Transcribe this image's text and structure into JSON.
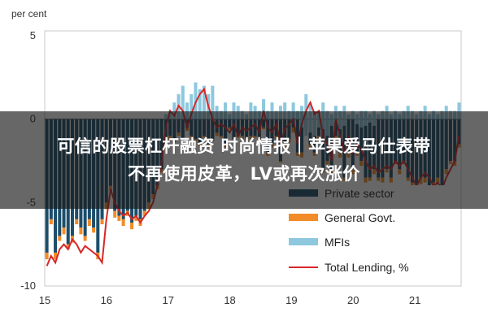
{
  "chart_data": {
    "type": "bar",
    "ylabel": "per cent",
    "ylim": [
      -10,
      5
    ],
    "yticks": [
      5,
      0,
      -5,
      -10
    ],
    "xticks": [
      "15",
      "16",
      "17",
      "18",
      "19",
      "20",
      "21"
    ],
    "x_start_year": 2015,
    "x_end_year": 2021.75,
    "series_names": {
      "private": "Private sector",
      "gov": "General Govt.",
      "mfi": "MFIs",
      "total": "Total Lending, %"
    },
    "colors": {
      "private": "#1d4e6b",
      "gov": "#f28c28",
      "mfi": "#8dc8de",
      "total": "#d62728"
    },
    "bars": {
      "private": [
        -8.0,
        -6.0,
        -8.0,
        -7.0,
        -6.5,
        -7.5,
        -7.0,
        -6.0,
        -6.5,
        -7.0,
        -6.0,
        -6.5,
        -8.0,
        -6.0,
        -5.0,
        -4.0,
        -5.5,
        -5.8,
        -6.0,
        -5.5,
        -6.2,
        -5.8,
        -6.0,
        -5.5,
        -5.0,
        -4.5,
        -4.0,
        -3.0,
        -1.5,
        -1.0,
        -1.2,
        -0.8,
        -1.5,
        -0.5,
        -1.0,
        -1.2,
        -1.5,
        -1.0,
        -1.5,
        -1.2,
        -0.8,
        -1.0,
        -1.5,
        -0.5,
        -1.2,
        -1.0,
        -1.0,
        -1.2,
        -1.0,
        -1.0,
        -1.2,
        -0.5,
        -2.0,
        -1.5,
        -1.0,
        -2.5,
        -1.5,
        -1.2,
        -0.5,
        -2.0,
        -2.0,
        -0.5,
        -1.5,
        -2.0,
        -1.0,
        -3.0,
        -2.5,
        -3.0,
        -1.0,
        -2.0,
        -3.5,
        -2.0,
        -3.0,
        -2.0,
        -2.5,
        -3.5,
        -3.5,
        -3.0,
        -3.5,
        -3.5,
        -3.0,
        -3.5,
        -2.5,
        -3.0,
        -2.5,
        -3.5,
        -3.8,
        -4.5,
        -3.5,
        -3.5,
        -4.0,
        -3.8,
        -3.5,
        -4.0,
        -3.0,
        -2.5,
        -2.5,
        -1.5
      ],
      "gov": [
        -0.4,
        -0.3,
        -0.4,
        -0.3,
        -0.4,
        -0.3,
        -0.4,
        -0.3,
        -0.4,
        -0.3,
        -0.4,
        -0.3,
        -0.4,
        -0.3,
        -0.4,
        -0.3,
        -0.4,
        -0.3,
        -0.4,
        -0.3,
        -0.4,
        -0.3,
        -0.4,
        -0.3,
        -0.4,
        -0.3,
        -0.2,
        -0.2,
        -0.3,
        -0.2,
        -0.2,
        -0.2,
        -0.1,
        -0.2,
        -0.1,
        -0.1,
        -0.1,
        -0.1,
        -0.2,
        -0.1,
        -0.2,
        -0.1,
        -0.2,
        -0.1,
        -0.2,
        -0.1,
        -0.2,
        -0.1,
        -0.2,
        -0.1,
        -0.2,
        -0.1,
        -0.2,
        -0.2,
        -0.2,
        -0.1,
        -0.2,
        -0.2,
        -0.3,
        -0.2,
        -0.3,
        -0.2,
        -0.3,
        -0.2,
        -0.3,
        -0.2,
        -0.2,
        -0.3,
        -0.2,
        -0.3,
        -0.2,
        -0.3,
        -0.3,
        -0.2,
        -0.3,
        -0.3,
        -0.2,
        -0.3,
        -0.2,
        -0.3,
        -0.2,
        -0.3,
        -0.2,
        -0.3,
        -0.2,
        -0.2,
        -0.3,
        -0.3,
        -0.4,
        -0.3,
        -0.4,
        -0.4,
        -0.3,
        -0.4,
        -0.3,
        -0.2,
        -0.3,
        -0.2
      ],
      "mfi": [
        0,
        0,
        0,
        0,
        0,
        0,
        0,
        0,
        0,
        0,
        0,
        0,
        0,
        0,
        0,
        0,
        0,
        0,
        0,
        0,
        0,
        0,
        0,
        0,
        0,
        0,
        0,
        0,
        0.3,
        0.5,
        1.0,
        1.5,
        2.0,
        1.0,
        1.5,
        2.2,
        1.8,
        2.0,
        1.5,
        2.0,
        0.8,
        0.5,
        1.0,
        0.3,
        1.0,
        0.8,
        0.5,
        0.3,
        1.0,
        0.8,
        0.5,
        1.2,
        0.5,
        1.0,
        0.5,
        0.8,
        1.0,
        0.5,
        1.0,
        0.5,
        0.8,
        1.5,
        1.0,
        0.5,
        0.5,
        1.0,
        0.5,
        0.3,
        0.8,
        0.5,
        0.8,
        0.3,
        0.5,
        0.3,
        0.5,
        0.5,
        0.3,
        0.5,
        0.3,
        0.5,
        0.8,
        0.3,
        0.5,
        0.3,
        0.5,
        0.8,
        0.5,
        0.3,
        0.5,
        0.8,
        0.3,
        0.5,
        0.3,
        0.5,
        0.8,
        0.5,
        0.5,
        1.0
      ],
      "mfi_over_private": [
        0,
        0,
        0,
        0,
        0,
        0,
        0,
        0,
        0,
        0,
        0,
        0,
        0,
        0,
        0,
        0,
        0,
        0,
        0,
        0,
        0,
        0,
        0,
        0,
        0,
        0,
        0,
        0,
        0,
        0,
        0,
        0,
        0,
        0,
        0,
        0,
        0,
        0,
        0,
        0,
        0,
        0,
        0,
        0,
        0,
        0,
        0,
        0,
        0,
        0,
        0,
        0,
        0,
        0,
        0,
        0,
        0,
        0,
        0,
        0,
        0.5,
        1.0,
        0.8,
        1.0,
        0.5,
        0.6,
        1.0,
        0.4,
        0.2,
        0.6,
        0.4,
        0,
        0,
        0.3,
        0.5,
        0.4,
        0.2,
        0.4,
        0,
        0,
        0,
        0,
        0,
        0,
        0,
        0,
        0,
        0,
        0,
        0,
        0,
        0,
        0,
        0,
        0,
        0,
        0,
        0
      ]
    },
    "line": [
      -8.8,
      -8.2,
      -8.6,
      -7.8,
      -7.5,
      -7.8,
      -7.2,
      -7.5,
      -8.0,
      -7.6,
      -7.8,
      -8.0,
      -8.2,
      -8.6,
      -6.0,
      -4.2,
      -5.0,
      -5.5,
      -5.8,
      -5.6,
      -6.0,
      -5.8,
      -6.2,
      -5.8,
      -5.5,
      -5.0,
      -4.0,
      -2.5,
      -0.5,
      0.5,
      0.2,
      0.8,
      0.5,
      -0.5,
      0.3,
      1.0,
      1.5,
      1.8,
      0.8,
      0.0,
      -0.5,
      -0.3,
      -0.5,
      -0.8,
      -0.3,
      -1.0,
      -0.5,
      -0.7,
      -0.5,
      -0.3,
      -0.8,
      0.5,
      -0.5,
      -0.8,
      -0.3,
      -1.5,
      -0.6,
      -0.3,
      0.0,
      -1.5,
      -0.3,
      0.5,
      1.0,
      0.3,
      0.5,
      -1.0,
      -1.5,
      -2.5,
      0.0,
      -1.0,
      -2.0,
      -1.0,
      -2.0,
      -1.5,
      -1.8,
      -2.5,
      -3.0,
      -2.8,
      -3.2,
      -3.0,
      -2.8,
      -3.0,
      -2.5,
      -2.8,
      -2.5,
      -3.0,
      -3.5,
      -4.0,
      -3.5,
      -3.2,
      -3.5,
      -4.0,
      -3.8,
      -4.2,
      -3.5,
      -3.0,
      -2.5,
      -1.0
    ]
  },
  "overlay": {
    "line1": "可信的股票杠杆融资 时尚情报｜苹果爱马仕表带",
    "line2": "不再使用皮革，LV或再次涨价"
  }
}
